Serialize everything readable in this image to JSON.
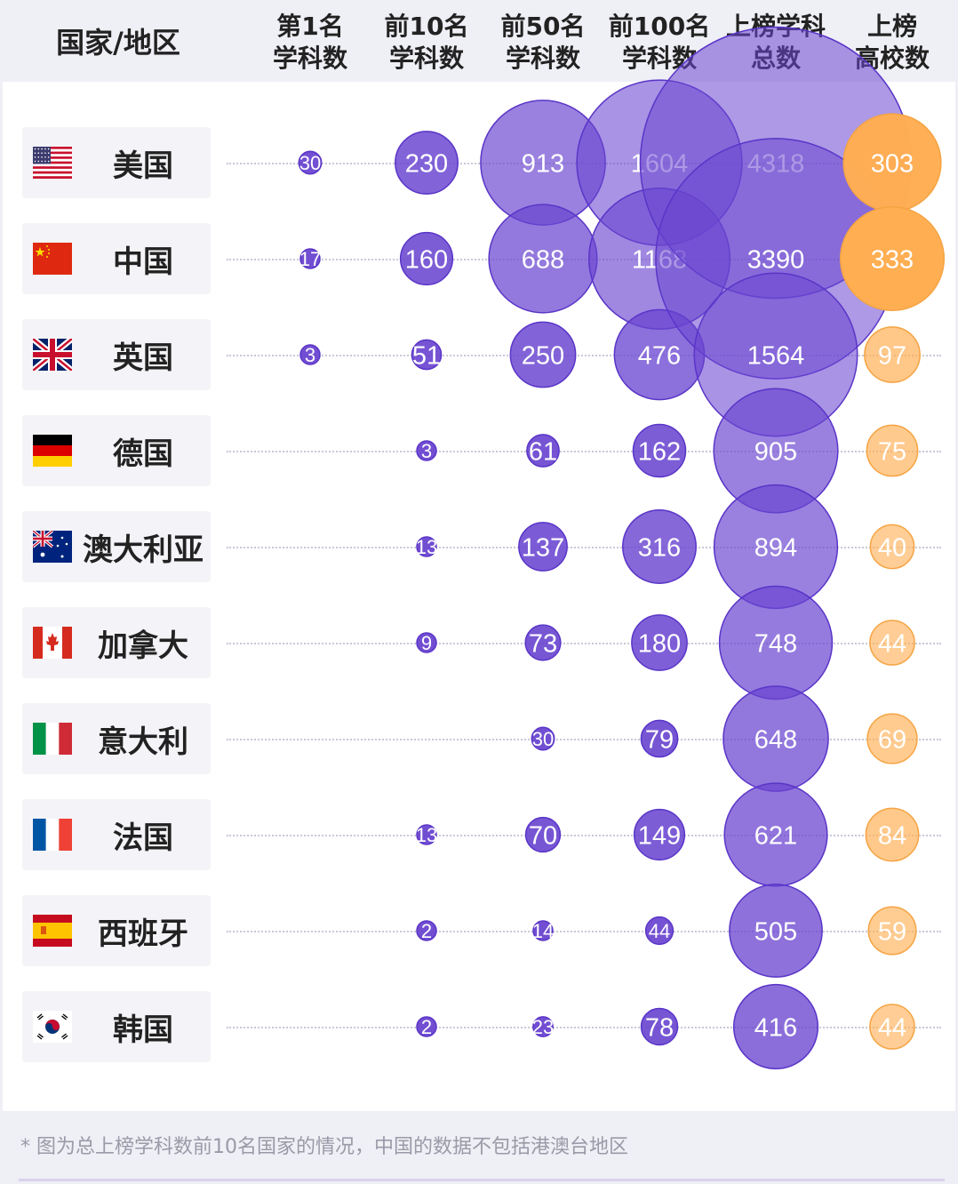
{
  "header": {
    "country_label": "国家/地区",
    "columns": [
      "第1名\n学科数",
      "前10名\n学科数",
      "前50名\n学科数",
      "前100名\n学科数",
      "上榜学科\n总数",
      "上榜\n高校数"
    ]
  },
  "colors": {
    "purple": "#6a45d0",
    "orange": "#ffae52",
    "label_bg": "#f4f4f8",
    "header_bg": "#efeff6"
  },
  "chart_data": {
    "type": "bubble-table",
    "series": [
      {
        "name": "第1名学科数",
        "values": [
          30,
          17,
          3,
          null,
          null,
          null,
          null,
          null,
          null,
          null
        ]
      },
      {
        "name": "前10名学科数",
        "values": [
          230,
          160,
          51,
          3,
          13,
          9,
          null,
          13,
          2,
          2
        ]
      },
      {
        "name": "前50名学科数",
        "values": [
          913,
          688,
          250,
          61,
          137,
          73,
          30,
          70,
          14,
          23
        ]
      },
      {
        "name": "前100名学科数",
        "values": [
          1604,
          1168,
          476,
          162,
          316,
          180,
          79,
          149,
          44,
          78
        ]
      },
      {
        "name": "上榜学科总数",
        "values": [
          4318,
          3390,
          1564,
          905,
          894,
          748,
          648,
          621,
          505,
          416
        ]
      },
      {
        "name": "上榜高校数",
        "values": [
          303,
          333,
          97,
          75,
          40,
          44,
          69,
          84,
          59,
          44
        ]
      }
    ],
    "categories": [
      "美国",
      "中国",
      "英国",
      "德国",
      "澳大利亚",
      "加拿大",
      "意大利",
      "法国",
      "西班牙",
      "韩国"
    ],
    "flags": [
      "us-flag-icon",
      "cn-flag-icon",
      "uk-flag-icon",
      "de-flag-icon",
      "au-flag-icon",
      "ca-flag-icon",
      "it-flag-icon",
      "fr-flag-icon",
      "es-flag-icon",
      "kr-flag-icon"
    ]
  },
  "footnote": "* 图为总上榜学科数前10名国家的情况，中国的数据不包括港澳台地区"
}
